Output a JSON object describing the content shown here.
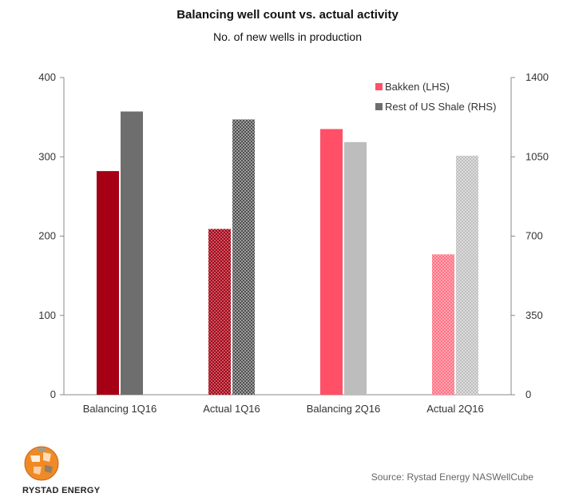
{
  "title": "Balancing well count vs. actual activity",
  "subtitle": "No. of new wells in production",
  "source": "Source: Rystad Energy NASWellCube",
  "logo_text": "RYSTAD ENERGY",
  "colors": {
    "bakken_balancing_1q": "#a50014",
    "bakken_actual_1q": "#a50014",
    "rest_balancing_1q": "#6e6e6e",
    "rest_actual_1q": "#555555",
    "bakken_balancing_2q": "#ff5068",
    "bakken_actual_2q": "#ff6f82",
    "rest_balancing_2q": "#bdbdbd",
    "rest_actual_2q": "#c4c4c4",
    "axis": "#888888"
  },
  "chart_data": {
    "type": "bar",
    "categories": [
      "Balancing 1Q16",
      "Actual 1Q16",
      "Balancing 2Q16",
      "Actual 2Q16"
    ],
    "series": [
      {
        "name": "Bakken (LHS)",
        "axis": "left",
        "values": [
          282,
          209,
          335,
          177
        ]
      },
      {
        "name": "Rest of US Shale (RHS)",
        "axis": "right",
        "values": [
          1250,
          1215,
          1115,
          1055
        ]
      }
    ],
    "y_left": {
      "range": [
        0,
        400
      ],
      "ticks": [
        "0",
        "100",
        "200",
        "300",
        "400"
      ]
    },
    "y_right": {
      "range": [
        0,
        1400
      ],
      "ticks": [
        "0",
        "350",
        "700",
        "1050",
        "1400"
      ]
    },
    "grid": false,
    "legend": "top-right"
  }
}
